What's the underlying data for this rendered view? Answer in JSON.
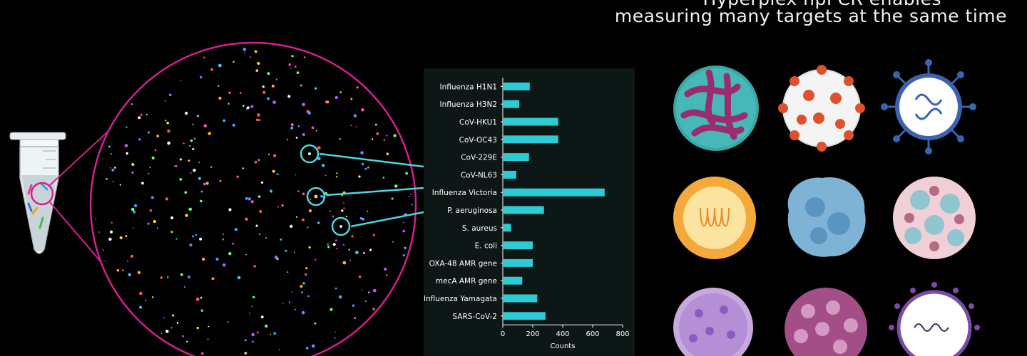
{
  "headline": {
    "line1": "Hyperplex hpPCR enables",
    "line2": "measuring many targets at the same time"
  },
  "colors": {
    "background": "#000000",
    "magenta": "#d4208f",
    "cyan": "#4fd6df",
    "bar": "#2ccbd6",
    "panel": "#0c1716"
  },
  "icons": [
    "microcentrifuge-tube-icon",
    "partition-droplets-icon",
    "virus-icon",
    "bacteria-icon"
  ],
  "chart_data": {
    "type": "bar",
    "orientation": "horizontal",
    "categories": [
      "Influenza H1N1",
      "Influenza H3N2",
      "CoV-HKU1",
      "CoV-OC43",
      "CoV-229E",
      "CoV-NL63",
      "Influenza Victoria",
      "P. aeruginosa",
      "S. aureus",
      "E. coli",
      "OXA-48 AMR gene",
      "mecA AMR gene",
      "Influenza Yamagata",
      "SARS-CoV-2"
    ],
    "values": [
      180,
      110,
      370,
      370,
      175,
      90,
      680,
      275,
      55,
      200,
      200,
      130,
      230,
      285
    ],
    "xlabel": "Counts",
    "xlim": [
      0,
      800
    ],
    "xticks": [
      "0",
      "200",
      "400",
      "600",
      "800"
    ],
    "grid": false
  }
}
